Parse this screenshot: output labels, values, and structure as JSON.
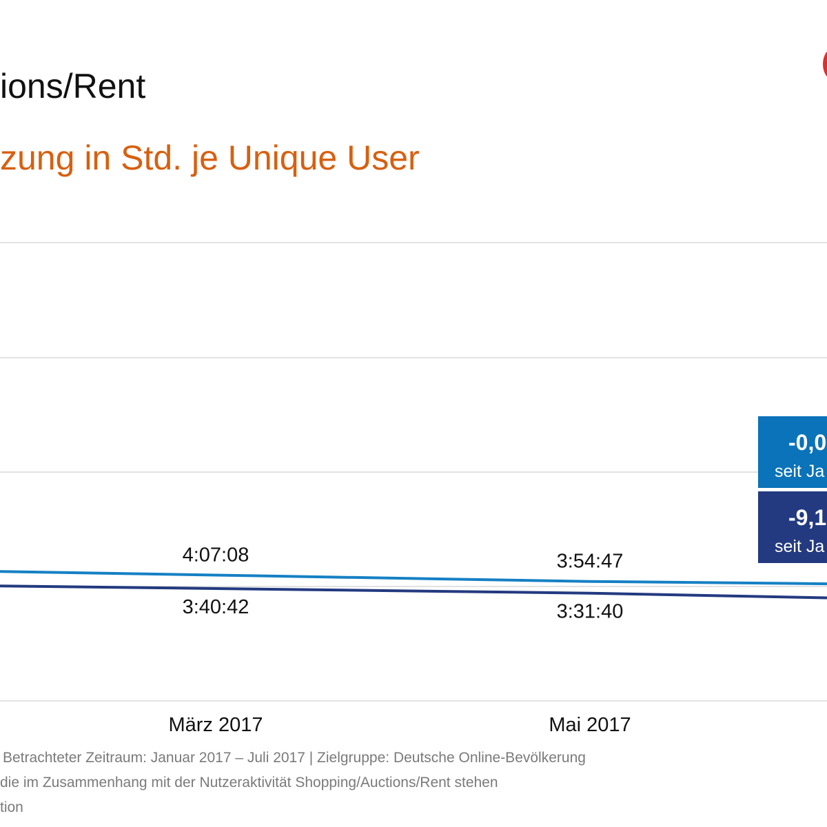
{
  "header": {
    "title": "ions/Rent",
    "subtitle": "zung in Std. je Unique User"
  },
  "colors": {
    "series_light": "#1580c4",
    "series_dark": "#233a80",
    "subtitle": "#d7600f",
    "grid": "#d9d9d9"
  },
  "chart_data": {
    "type": "line",
    "x": [
      "März 2017",
      "Mai 2017"
    ],
    "series": [
      {
        "values": [
          "4:07:08",
          "3:54:47"
        ]
      },
      {
        "values": [
          "3:40:42",
          "3:31:40"
        ]
      }
    ],
    "grid": true
  },
  "callouts": [
    {
      "value": "-0,0",
      "caption": "seit Ja"
    },
    {
      "value": "-9,1",
      "caption": "seit Ja"
    }
  ],
  "footnotes": [
    "Betrachteter Zeitraum: Januar 2017 – Juli 2017 | Zielgruppe: Deutsche Online-Bevölkerung",
    "die im Zusammenhang mit der Nutzeraktivität Shopping/Auctions/Rent stehen",
    "tion"
  ]
}
